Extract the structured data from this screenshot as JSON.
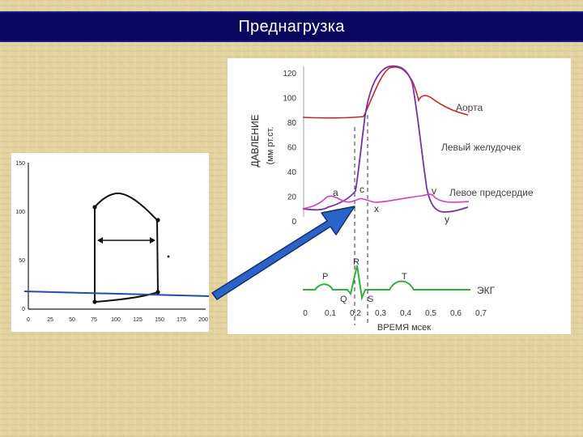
{
  "slide": {
    "title": "Преднагрузка"
  },
  "pv_loop": {
    "y_ticks": [
      "150",
      "100",
      "50",
      "0"
    ],
    "x_ticks": [
      "0",
      "25",
      "50",
      "75",
      "100",
      "125",
      "150",
      "175",
      "200"
    ]
  },
  "wiggers": {
    "y_axis_label": "ДАВЛЕНИЕ",
    "y_axis_unit": "(мм рт.ст.",
    "y_ticks": [
      "120",
      "100",
      "80",
      "60",
      "40",
      "20",
      "0"
    ],
    "x_ticks": [
      "0",
      "0,1",
      "0,2",
      "0,3",
      "0,4",
      "0,5",
      "0,6",
      "0,7"
    ],
    "x_axis_label": "ВРЕМЯ мсек",
    "curve_labels": {
      "aorta": "Аорта",
      "ventricle": "Левый желудочек",
      "atrium": "Левое предсердие",
      "ecg": "ЭКГ"
    },
    "wave_labels": {
      "a": "a",
      "c": "c",
      "v": "v",
      "x": "x",
      "y": "y"
    },
    "ecg_labels": {
      "P": "P",
      "Q": "Q",
      "R": "R",
      "S": "S",
      "T": "T"
    },
    "colors": {
      "aorta": "#c4272b",
      "ventricle": "#7a2fa8",
      "atrium": "#d040c8",
      "ecg": "#2fb03a"
    }
  },
  "colors": {
    "title_bar": "#07075f",
    "arrow": "#2c63c9"
  }
}
